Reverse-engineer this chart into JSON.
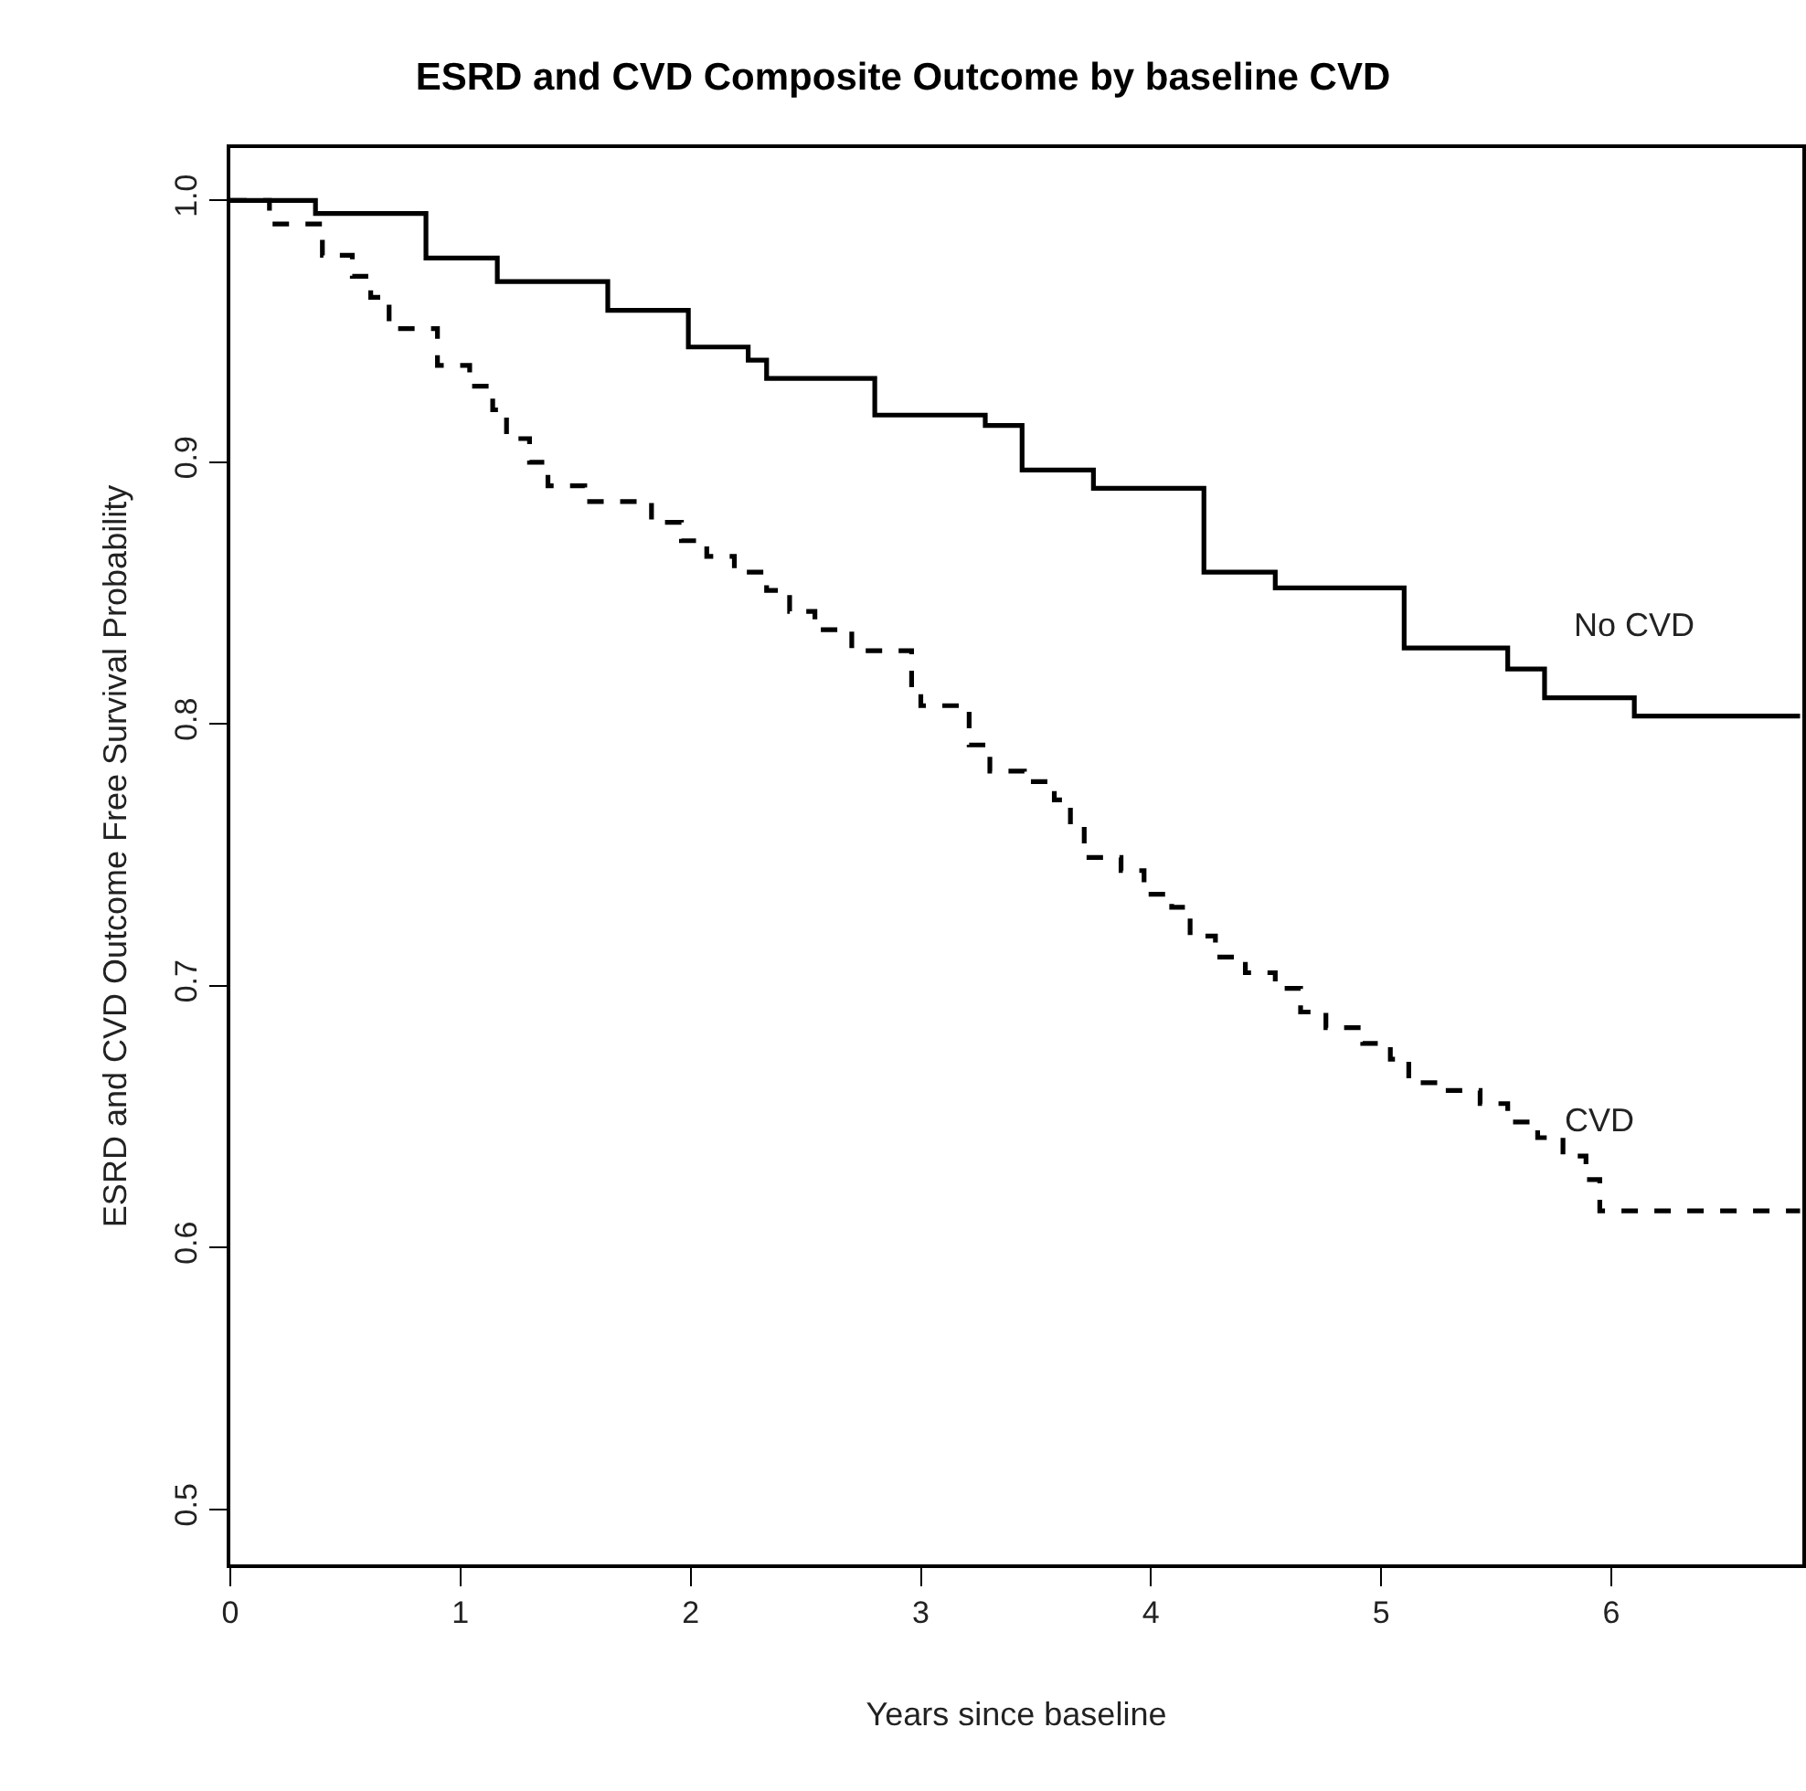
{
  "chart_data": {
    "type": "step",
    "title": "ESRD and CVD Composite Outcome by baseline CVD",
    "xlabel": "Years since baseline",
    "ylabel": "ESRD and CVD Outcome Free Survival Probability",
    "xlim": [
      0,
      6.83
    ],
    "xticks": [
      0,
      1,
      2,
      3,
      4,
      5,
      6
    ],
    "ylim": [
      0.479,
      1.02
    ],
    "yticks": [
      0.5,
      0.6,
      0.7,
      0.8,
      0.9,
      {
        "value": 1.0,
        "label": "1.0"
      }
    ],
    "grid": false,
    "legend": false,
    "marker": "none",
    "series": [
      {
        "name": "No CVD",
        "color": "#000000",
        "line_style": "solid",
        "x": [
          0,
          0.37,
          0.85,
          1.16,
          1.64,
          1.99,
          2.25,
          2.33,
          2.8,
          3.28,
          3.44,
          3.75,
          4.23,
          4.54,
          5.1,
          5.55,
          5.71,
          6.1,
          6.82
        ],
        "values": [
          1.0,
          0.995,
          0.978,
          0.969,
          0.958,
          0.944,
          0.939,
          0.932,
          0.918,
          0.914,
          0.897,
          0.89,
          0.858,
          0.852,
          0.829,
          0.821,
          0.81,
          0.803,
          0.803
        ]
      },
      {
        "name": "CVD",
        "color": "#000000",
        "line_style": "dashed",
        "x": [
          0,
          0.17,
          0.4,
          0.53,
          0.61,
          0.69,
          0.9,
          1.04,
          1.14,
          1.2,
          1.3,
          1.38,
          1.54,
          1.83,
          1.96,
          2.07,
          2.19,
          2.33,
          2.43,
          2.54,
          2.7,
          2.96,
          3.0,
          3.21,
          3.3,
          3.45,
          3.58,
          3.65,
          3.71,
          3.87,
          3.97,
          4.09,
          4.17,
          4.28,
          4.41,
          4.54,
          4.65,
          4.76,
          4.92,
          5.04,
          5.12,
          5.28,
          5.43,
          5.55,
          5.68,
          5.79,
          5.89,
          5.95,
          6.82
        ],
        "values": [
          1.0,
          0.991,
          0.979,
          0.971,
          0.963,
          0.951,
          0.937,
          0.929,
          0.92,
          0.909,
          0.9,
          0.891,
          0.885,
          0.877,
          0.87,
          0.864,
          0.858,
          0.851,
          0.843,
          0.836,
          0.828,
          0.814,
          0.807,
          0.792,
          0.782,
          0.778,
          0.771,
          0.761,
          0.749,
          0.744,
          0.735,
          0.73,
          0.719,
          0.711,
          0.705,
          0.699,
          0.69,
          0.684,
          0.678,
          0.672,
          0.663,
          0.66,
          0.655,
          0.648,
          0.642,
          0.635,
          0.626,
          0.614,
          0.614
        ]
      }
    ]
  }
}
